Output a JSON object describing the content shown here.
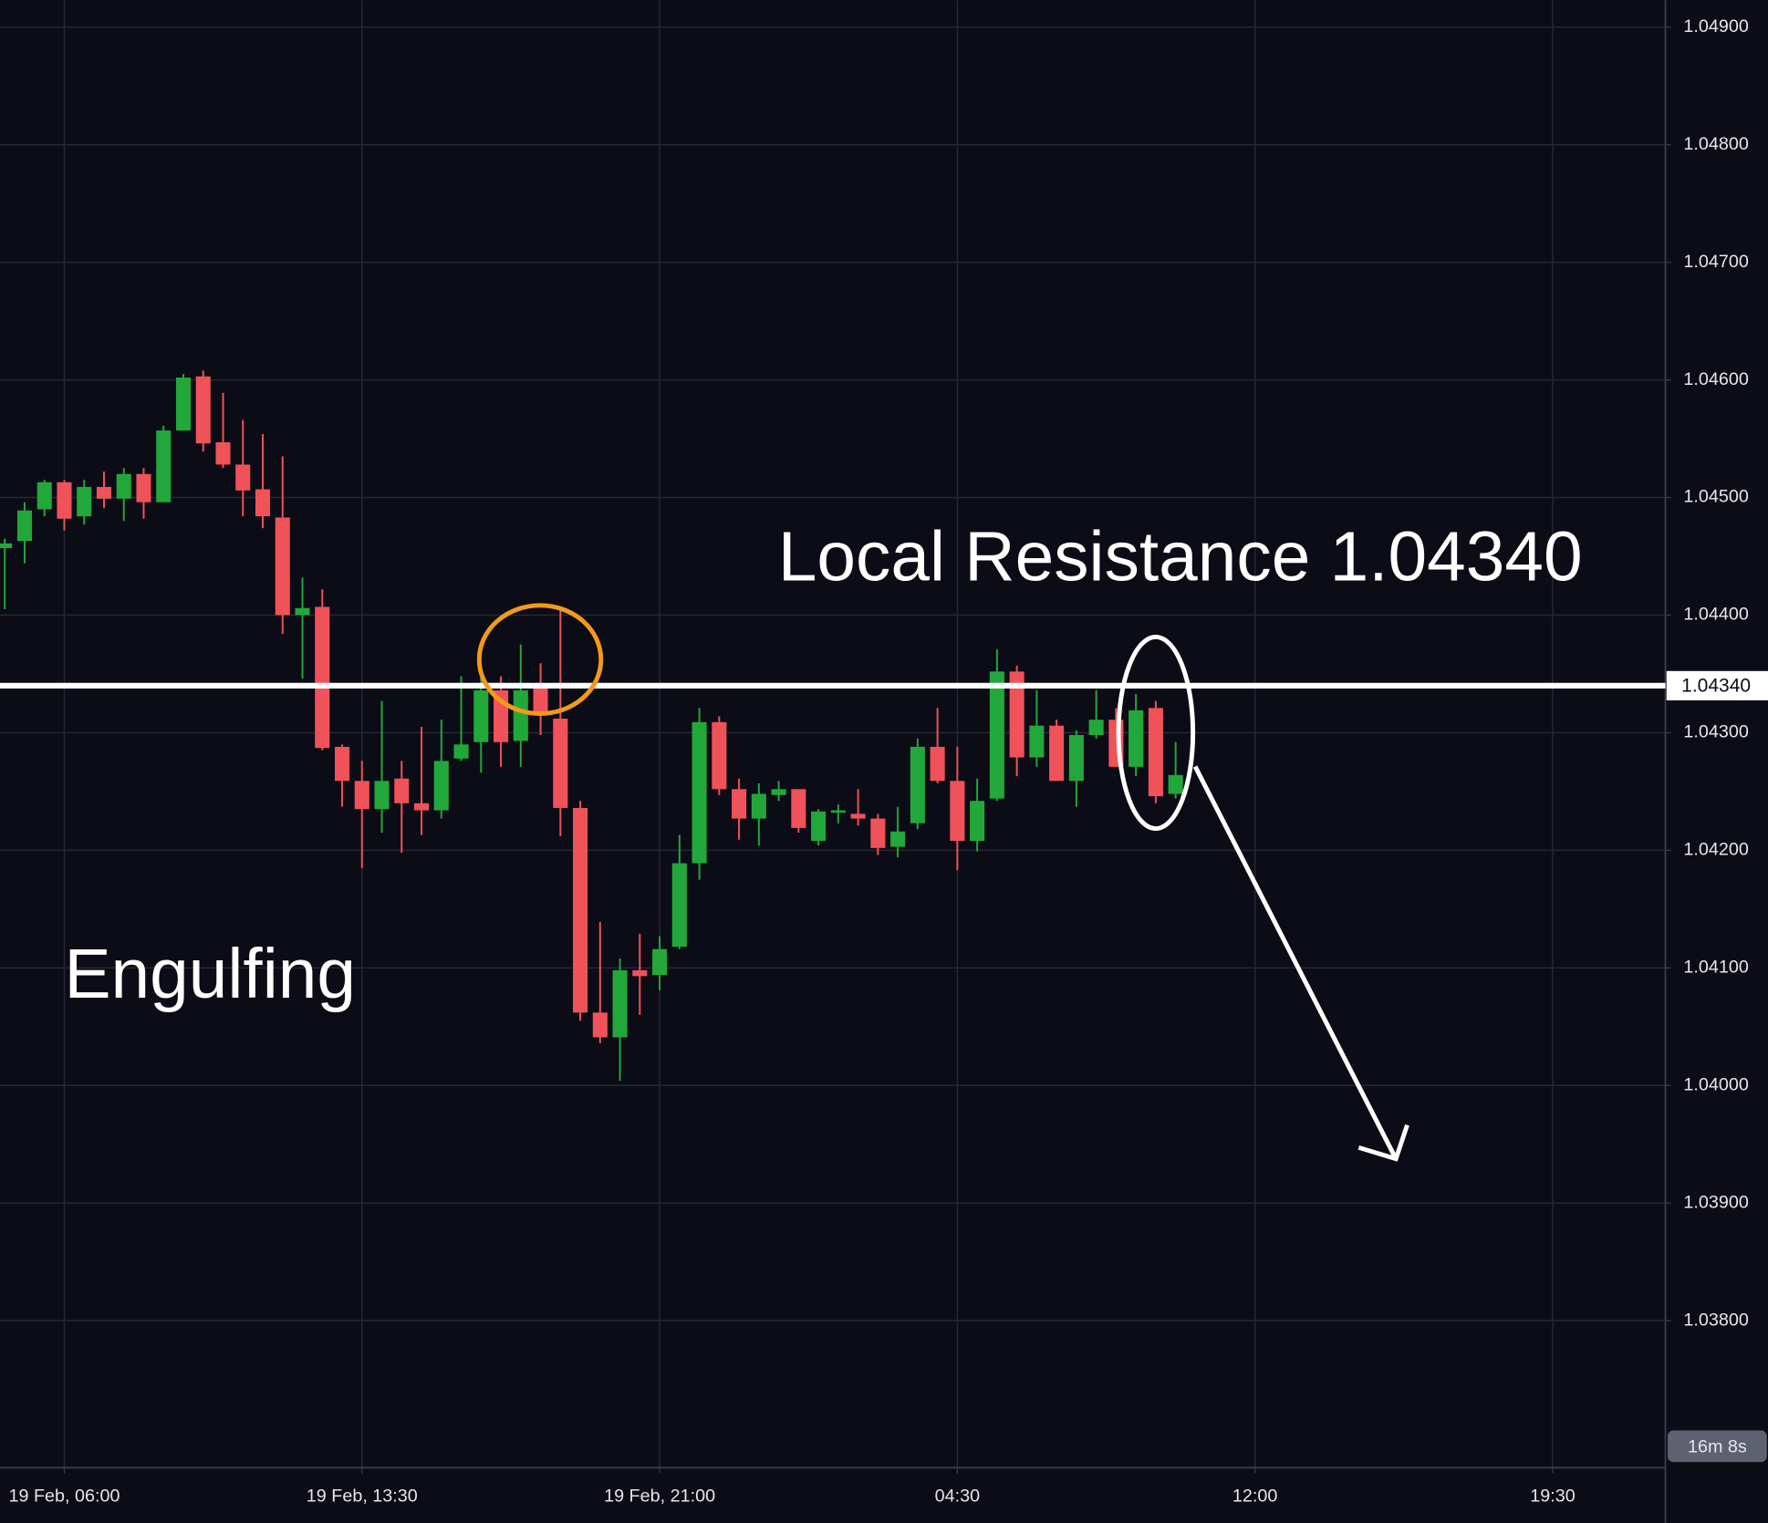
{
  "chart_data": {
    "type": "candlestick",
    "up_color": "#22a83a",
    "down_color": "#f0525a",
    "grid": true,
    "xlim": [
      4.38,
      46.34
    ],
    "xticks": [
      {
        "value": 6,
        "label": "19 Feb, 06:00"
      },
      {
        "value": 13.5,
        "label": "19 Feb, 13:30"
      },
      {
        "value": 21,
        "label": "19 Feb, 21:00"
      },
      {
        "value": 28.5,
        "label": "04:30"
      },
      {
        "value": 36,
        "label": "12:00"
      },
      {
        "value": 43.5,
        "label": "19:30"
      }
    ],
    "ylim": [
      1.03675,
      1.04923
    ],
    "yticks": [
      {
        "value": 1.049,
        "label": "1.04900"
      },
      {
        "value": 1.048,
        "label": "1.04800"
      },
      {
        "value": 1.047,
        "label": "1.04700"
      },
      {
        "value": 1.046,
        "label": "1.04600"
      },
      {
        "value": 1.045,
        "label": "1.04500"
      },
      {
        "value": 1.044,
        "label": "1.04400"
      },
      {
        "value": 1.043,
        "label": "1.04300"
      },
      {
        "value": 1.042,
        "label": "1.04200"
      },
      {
        "value": 1.041,
        "label": "1.04100"
      },
      {
        "value": 1.04,
        "label": "1.04000"
      },
      {
        "value": 1.039,
        "label": "1.03900"
      },
      {
        "value": 1.038,
        "label": "1.03800"
      }
    ],
    "x": [
      4.5,
      5,
      5.5,
      6,
      6.5,
      7,
      7.5,
      8,
      8.5,
      9,
      9.5,
      10,
      10.5,
      11,
      11.5,
      12,
      12.5,
      13,
      13.5,
      14,
      14.5,
      15,
      15.5,
      16,
      16.5,
      17,
      17.5,
      18,
      18.5,
      19,
      19.5,
      20,
      20.5,
      21,
      21.5,
      22,
      22.5,
      23,
      23.5,
      24,
      24.5,
      25,
      25.5,
      26,
      26.5,
      27,
      27.5,
      28,
      28.5,
      29,
      29.5,
      30,
      30.5,
      31,
      31.5,
      32,
      32.5,
      33,
      33.5,
      34
    ],
    "open": [
      1.04457,
      1.04463,
      1.0449,
      1.04513,
      1.04484,
      1.04509,
      1.04499,
      1.0452,
      1.04496,
      1.04557,
      1.04603,
      1.04547,
      1.04528,
      1.04507,
      1.04483,
      1.044,
      1.04407,
      1.04288,
      1.04259,
      1.04235,
      1.04261,
      1.0424,
      1.04234,
      1.04278,
      1.04292,
      1.04336,
      1.04293,
      1.04338,
      1.04312,
      1.04236,
      1.04062,
      1.04041,
      1.04098,
      1.04094,
      1.04118,
      1.04189,
      1.04309,
      1.04252,
      1.04227,
      1.04247,
      1.04252,
      1.04208,
      1.04232,
      1.04231,
      1.04227,
      1.04203,
      1.04223,
      1.04288,
      1.04259,
      1.04208,
      1.04244,
      1.04352,
      1.04279,
      1.04306,
      1.04259,
      1.04298,
      1.04311,
      1.04271,
      1.04321,
      1.04248
    ],
    "high": [
      1.04465,
      1.04496,
      1.04515,
      1.04515,
      1.04515,
      1.04522,
      1.04525,
      1.04525,
      1.04561,
      1.04605,
      1.04608,
      1.04589,
      1.04566,
      1.04554,
      1.04535,
      1.04432,
      1.04422,
      1.0429,
      1.04276,
      1.04327,
      1.04276,
      1.04305,
      1.04311,
      1.04348,
      1.04348,
      1.04348,
      1.04375,
      1.04359,
      1.04404,
      1.04242,
      1.04139,
      1.04108,
      1.04129,
      1.04127,
      1.04213,
      1.04321,
      1.04314,
      1.04261,
      1.04257,
      1.04259,
      1.04252,
      1.04235,
      1.04239,
      1.04252,
      1.04231,
      1.04237,
      1.04295,
      1.04321,
      1.04288,
      1.04261,
      1.04371,
      1.04357,
      1.04336,
      1.04311,
      1.04302,
      1.04336,
      1.04321,
      1.04333,
      1.04327,
      1.04292
    ],
    "low": [
      1.04405,
      1.04444,
      1.04484,
      1.04472,
      1.04477,
      1.04491,
      1.0448,
      1.04482,
      1.04496,
      1.04557,
      1.04539,
      1.04525,
      1.04484,
      1.04474,
      1.04384,
      1.04346,
      1.04285,
      1.04237,
      1.04185,
      1.04215,
      1.04198,
      1.04213,
      1.04227,
      1.04276,
      1.04266,
      1.04271,
      1.04271,
      1.04298,
      1.04212,
      1.04055,
      1.04036,
      1.04004,
      1.0406,
      1.04081,
      1.04116,
      1.04175,
      1.04247,
      1.04209,
      1.04204,
      1.04242,
      1.04215,
      1.04204,
      1.04223,
      1.04221,
      1.04196,
      1.04194,
      1.04218,
      1.04257,
      1.04183,
      1.04199,
      1.04242,
      1.04263,
      1.04271,
      1.04259,
      1.04237,
      1.04295,
      1.04271,
      1.04263,
      1.0424,
      1.04244
    ],
    "close": [
      1.04461,
      1.04489,
      1.04513,
      1.04482,
      1.04509,
      1.04499,
      1.0452,
      1.04496,
      1.04557,
      1.04602,
      1.04546,
      1.04528,
      1.04506,
      1.04484,
      1.044,
      1.04406,
      1.04287,
      1.04259,
      1.04235,
      1.04259,
      1.0424,
      1.04234,
      1.04276,
      1.0429,
      1.04336,
      1.04292,
      1.04336,
      1.04316,
      1.04236,
      1.04062,
      1.04041,
      1.04098,
      1.04093,
      1.04116,
      1.04189,
      1.04309,
      1.04252,
      1.04227,
      1.04248,
      1.04252,
      1.04219,
      1.04233,
      1.04234,
      1.04227,
      1.04202,
      1.04216,
      1.04288,
      1.04259,
      1.04208,
      1.04242,
      1.04352,
      1.04279,
      1.04306,
      1.04259,
      1.04298,
      1.04311,
      1.04271,
      1.04319,
      1.04246,
      1.04264
    ],
    "levels": [
      {
        "value": 1.0434,
        "label": "1.04340",
        "color": "#ffffff"
      }
    ],
    "annotations": [
      {
        "text": "Local Resistance 1.04340"
      },
      {
        "text": "Engulfing"
      }
    ],
    "countdown": "16m 8s"
  }
}
